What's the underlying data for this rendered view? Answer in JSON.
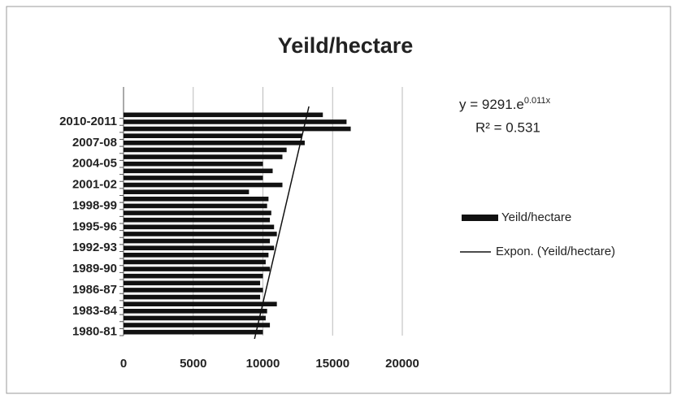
{
  "chart_data": {
    "type": "bar",
    "orientation": "horizontal",
    "title": "Yeild/hectare",
    "categories": [
      "1980-81",
      null,
      null,
      "1983-84",
      null,
      null,
      "1986-87",
      null,
      null,
      "1989-90",
      null,
      null,
      "1992-93",
      null,
      null,
      "1995-96",
      null,
      null,
      "1998-99",
      null,
      null,
      "2001-02",
      null,
      null,
      "2004-05",
      null,
      null,
      "2007-08",
      null,
      null,
      "2010-2011",
      null
    ],
    "series": [
      {
        "name": "Yeild/hectare",
        "color": "#111111",
        "values": [
          10000,
          10500,
          10200,
          10300,
          11000,
          9800,
          10000,
          9800,
          10000,
          10500,
          10200,
          10400,
          10800,
          10500,
          11000,
          10800,
          10500,
          10600,
          10300,
          10400,
          9000,
          11400,
          10000,
          10700,
          10000,
          11400,
          11700,
          13000,
          12800,
          16300,
          16000,
          14300
        ]
      }
    ],
    "trendline": {
      "name": "Expon. (Yeild/hectare)",
      "color": "#111111",
      "values": [
        9400,
        13300
      ]
    },
    "equation": {
      "base": "y = 9291.e",
      "exponent": "0.011x"
    },
    "r_squared": "R² = 0.531",
    "xlim": [
      0,
      20000
    ],
    "xticks": [
      0,
      5000,
      10000,
      15000,
      20000
    ],
    "grid": true
  }
}
